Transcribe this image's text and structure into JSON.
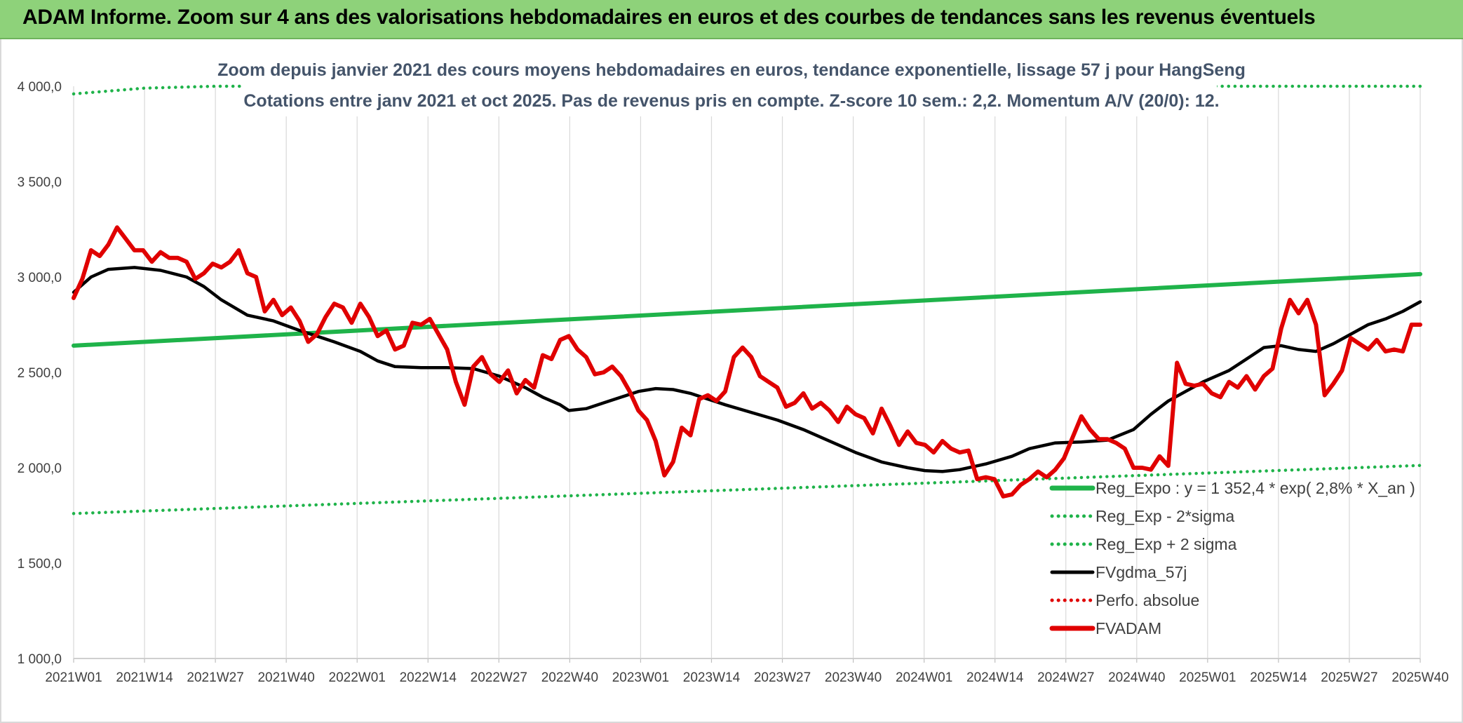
{
  "header": {
    "title": "ADAM Informe. Zoom sur 4 ans des valorisations hebdomadaires en euros et des courbes de tendances sans les revenus éventuels"
  },
  "colors": {
    "header_bg": "#8ed27a",
    "reg_expo": "#1fb34a",
    "fvgdma": "#000000",
    "perfo": "#e00000",
    "fvadam": "#e00000",
    "grid": "#d9d9d9",
    "subtitle": "#44546a"
  },
  "chart_data": {
    "type": "line",
    "title_lines": [
      "Zoom depuis janvier 2021 des cours moyens hebdomadaires en euros, tendance exponentielle, lissage 57 j pour HangSeng",
      "Cotations entre janv 2021 et oct 2025. Pas de revenus pris en compte. Z-score 10 sem.: 2,2. Momentum A/V (20/0): 12."
    ],
    "x_ticks": [
      "2021W01",
      "2021W14",
      "2021W27",
      "2021W40",
      "2022W01",
      "2022W14",
      "2022W27",
      "2022W40",
      "2023W01",
      "2023W14",
      "2023W27",
      "2023W40",
      "2024W01",
      "2024W14",
      "2024W27",
      "2024W40",
      "2025W01",
      "2025W14",
      "2025W27",
      "2025W40"
    ],
    "y_ticks": [
      "1 000,0",
      "1 500,0",
      "2 000,0",
      "2 500,0",
      "3 000,0",
      "3 500,0",
      "4 000,0"
    ],
    "y_tick_values": [
      1000,
      1500,
      2000,
      2500,
      3000,
      3500,
      4000
    ],
    "ylim": [
      1000,
      4000
    ],
    "grid": true,
    "legend_position": "bottom-right",
    "legend": [
      {
        "label": "Reg_Expo : y = 1 352,4 * exp( 2,8% *  X_an )",
        "style": "solid-thick",
        "color": "#1fb34a"
      },
      {
        "label": "Reg_Exp - 2*sigma",
        "style": "dotted",
        "color": "#1fb34a"
      },
      {
        "label": "Reg_Exp + 2 sigma",
        "style": "dotted",
        "color": "#1fb34a"
      },
      {
        "label": "FVgdma_57j",
        "style": "solid",
        "color": "#000000"
      },
      {
        "label": "Perfo. absolue",
        "style": "dotted",
        "color": "#e00000"
      },
      {
        "label": "FVADAM",
        "style": "solid-thick",
        "color": "#e00000"
      }
    ],
    "series": [
      {
        "name": "Reg_Expo : y = 1 352,4 * exp( 2,8% *  X_an )",
        "kind": "trend",
        "points": [
          [
            0,
            2640
          ],
          [
            247,
            3015
          ]
        ]
      },
      {
        "name": "Reg_Exp - 2*sigma",
        "kind": "band-low",
        "points": [
          [
            0,
            1760
          ],
          [
            247,
            2012
          ]
        ]
      },
      {
        "name": "Reg_Exp + 2 sigma",
        "kind": "band-high",
        "points": [
          [
            0,
            3960
          ],
          [
            13,
            3990
          ],
          [
            26,
            4000
          ],
          [
            247,
            4000
          ]
        ]
      },
      {
        "name": "FVgdma_57j",
        "kind": "smooth",
        "points": [
          [
            0,
            2920
          ],
          [
            4,
            3000
          ],
          [
            8,
            3040
          ],
          [
            14,
            3050
          ],
          [
            20,
            3035
          ],
          [
            26,
            3000
          ],
          [
            30,
            2950
          ],
          [
            34,
            2880
          ],
          [
            40,
            2800
          ],
          [
            46,
            2770
          ],
          [
            52,
            2720
          ],
          [
            56,
            2690
          ],
          [
            60,
            2660
          ],
          [
            66,
            2610
          ],
          [
            70,
            2560
          ],
          [
            74,
            2530
          ],
          [
            80,
            2525
          ],
          [
            86,
            2525
          ],
          [
            92,
            2520
          ],
          [
            98,
            2480
          ],
          [
            104,
            2420
          ],
          [
            108,
            2370
          ],
          [
            112,
            2330
          ],
          [
            114,
            2300
          ],
          [
            118,
            2310
          ],
          [
            122,
            2340
          ],
          [
            126,
            2370
          ],
          [
            130,
            2400
          ],
          [
            134,
            2415
          ],
          [
            138,
            2410
          ],
          [
            142,
            2390
          ],
          [
            146,
            2360
          ],
          [
            150,
            2330
          ],
          [
            156,
            2290
          ],
          [
            162,
            2250
          ],
          [
            168,
            2200
          ],
          [
            174,
            2140
          ],
          [
            180,
            2080
          ],
          [
            186,
            2030
          ],
          [
            192,
            2000
          ],
          [
            196,
            1985
          ],
          [
            200,
            1980
          ],
          [
            204,
            1990
          ],
          [
            210,
            2020
          ],
          [
            216,
            2060
          ],
          [
            220,
            2100
          ],
          [
            226,
            2130
          ],
          [
            232,
            2135
          ],
          [
            238,
            2145
          ],
          [
            244,
            2200
          ],
          [
            248,
            2280
          ],
          [
            252,
            2350
          ],
          [
            256,
            2400
          ],
          [
            260,
            2450
          ],
          [
            266,
            2510
          ],
          [
            270,
            2570
          ],
          [
            274,
            2630
          ],
          [
            278,
            2640
          ],
          [
            282,
            2620
          ],
          [
            286,
            2610
          ],
          [
            290,
            2650
          ],
          [
            294,
            2700
          ],
          [
            298,
            2750
          ],
          [
            302,
            2780
          ],
          [
            306,
            2820
          ],
          [
            310,
            2870
          ]
        ]
      },
      {
        "name": "FVADAM",
        "kind": "price",
        "points": [
          [
            0,
            2890
          ],
          [
            2,
            2990
          ],
          [
            4,
            3140
          ],
          [
            6,
            3110
          ],
          [
            8,
            3170
          ],
          [
            10,
            3260
          ],
          [
            12,
            3200
          ],
          [
            14,
            3140
          ],
          [
            16,
            3140
          ],
          [
            18,
            3080
          ],
          [
            20,
            3130
          ],
          [
            22,
            3100
          ],
          [
            24,
            3100
          ],
          [
            26,
            3080
          ],
          [
            28,
            2990
          ],
          [
            30,
            3020
          ],
          [
            32,
            3070
          ],
          [
            34,
            3050
          ],
          [
            36,
            3080
          ],
          [
            38,
            3140
          ],
          [
            40,
            3020
          ],
          [
            42,
            3000
          ],
          [
            44,
            2820
          ],
          [
            46,
            2880
          ],
          [
            48,
            2800
          ],
          [
            50,
            2840
          ],
          [
            52,
            2770
          ],
          [
            54,
            2660
          ],
          [
            56,
            2700
          ],
          [
            58,
            2790
          ],
          [
            60,
            2860
          ],
          [
            62,
            2840
          ],
          [
            64,
            2760
          ],
          [
            66,
            2860
          ],
          [
            68,
            2790
          ],
          [
            70,
            2690
          ],
          [
            72,
            2720
          ],
          [
            74,
            2620
          ],
          [
            76,
            2640
          ],
          [
            78,
            2760
          ],
          [
            80,
            2750
          ],
          [
            82,
            2780
          ],
          [
            84,
            2700
          ],
          [
            86,
            2620
          ],
          [
            88,
            2450
          ],
          [
            90,
            2330
          ],
          [
            92,
            2530
          ],
          [
            94,
            2580
          ],
          [
            96,
            2490
          ],
          [
            98,
            2450
          ],
          [
            100,
            2510
          ],
          [
            102,
            2390
          ],
          [
            104,
            2460
          ],
          [
            106,
            2420
          ],
          [
            108,
            2590
          ],
          [
            110,
            2570
          ],
          [
            112,
            2670
          ],
          [
            114,
            2690
          ],
          [
            116,
            2620
          ],
          [
            118,
            2580
          ],
          [
            120,
            2490
          ],
          [
            122,
            2500
          ],
          [
            124,
            2530
          ],
          [
            126,
            2480
          ],
          [
            128,
            2400
          ],
          [
            130,
            2300
          ],
          [
            132,
            2250
          ],
          [
            134,
            2140
          ],
          [
            136,
            1960
          ],
          [
            138,
            2030
          ],
          [
            140,
            2210
          ],
          [
            142,
            2170
          ],
          [
            144,
            2360
          ],
          [
            146,
            2380
          ],
          [
            148,
            2350
          ],
          [
            150,
            2400
          ],
          [
            152,
            2580
          ],
          [
            154,
            2630
          ],
          [
            156,
            2580
          ],
          [
            158,
            2480
          ],
          [
            160,
            2450
          ],
          [
            162,
            2420
          ],
          [
            164,
            2320
          ],
          [
            166,
            2340
          ],
          [
            168,
            2390
          ],
          [
            170,
            2310
          ],
          [
            172,
            2340
          ],
          [
            174,
            2300
          ],
          [
            176,
            2240
          ],
          [
            178,
            2320
          ],
          [
            180,
            2280
          ],
          [
            182,
            2260
          ],
          [
            184,
            2180
          ],
          [
            186,
            2310
          ],
          [
            188,
            2220
          ],
          [
            190,
            2120
          ],
          [
            192,
            2190
          ],
          [
            194,
            2130
          ],
          [
            196,
            2120
          ],
          [
            198,
            2080
          ],
          [
            200,
            2140
          ],
          [
            202,
            2100
          ],
          [
            204,
            2080
          ],
          [
            206,
            2090
          ],
          [
            208,
            1940
          ],
          [
            210,
            1950
          ],
          [
            212,
            1940
          ],
          [
            214,
            1850
          ],
          [
            216,
            1860
          ],
          [
            218,
            1910
          ],
          [
            220,
            1940
          ],
          [
            222,
            1980
          ],
          [
            224,
            1950
          ],
          [
            226,
            1990
          ],
          [
            228,
            2050
          ],
          [
            230,
            2160
          ],
          [
            232,
            2270
          ],
          [
            234,
            2200
          ],
          [
            236,
            2150
          ],
          [
            238,
            2150
          ],
          [
            240,
            2130
          ],
          [
            242,
            2100
          ],
          [
            244,
            2000
          ],
          [
            246,
            2000
          ],
          [
            248,
            1990
          ],
          [
            250,
            2060
          ],
          [
            252,
            2010
          ],
          [
            254,
            2550
          ],
          [
            256,
            2440
          ],
          [
            258,
            2430
          ],
          [
            260,
            2440
          ],
          [
            262,
            2390
          ],
          [
            264,
            2370
          ],
          [
            266,
            2450
          ],
          [
            268,
            2420
          ],
          [
            270,
            2480
          ],
          [
            272,
            2410
          ],
          [
            274,
            2480
          ],
          [
            276,
            2520
          ],
          [
            278,
            2730
          ],
          [
            280,
            2880
          ],
          [
            282,
            2810
          ],
          [
            284,
            2880
          ],
          [
            286,
            2750
          ],
          [
            288,
            2380
          ],
          [
            290,
            2440
          ],
          [
            292,
            2510
          ],
          [
            294,
            2680
          ],
          [
            296,
            2650
          ],
          [
            298,
            2620
          ],
          [
            300,
            2670
          ],
          [
            302,
            2610
          ],
          [
            304,
            2620
          ],
          [
            306,
            2610
          ],
          [
            308,
            2750
          ],
          [
            310,
            2750
          ]
        ]
      },
      {
        "name": "Perfo. absolue",
        "kind": "perfo",
        "points": []
      }
    ],
    "x_index_max": 247
  }
}
